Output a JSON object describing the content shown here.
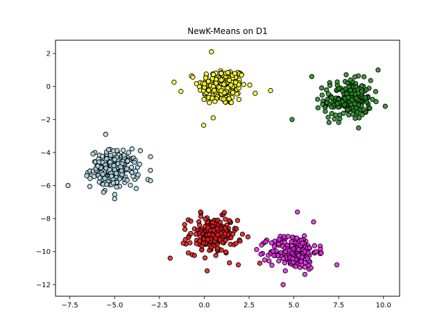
{
  "chart_data": {
    "type": "scatter",
    "title": "NewK-Means on D1",
    "xlabel": "",
    "ylabel": "",
    "xlim": [
      -8.3,
      10.9
    ],
    "ylim": [
      -12.7,
      2.8
    ],
    "xticks": [
      -7.5,
      -5.0,
      -2.5,
      0.0,
      2.5,
      5.0,
      7.5,
      10.0
    ],
    "xtick_labels": [
      "−7.5",
      "−5.0",
      "−2.5",
      "0.0",
      "2.5",
      "5.0",
      "7.5",
      "10.0"
    ],
    "yticks": [
      2,
      0,
      -2,
      -4,
      -6,
      -8,
      -10,
      -12
    ],
    "ytick_labels": [
      "2",
      "0",
      "−2",
      "−4",
      "−6",
      "−8",
      "−10",
      "−12"
    ],
    "grid": false,
    "legend": "none",
    "series": [
      {
        "color": "#ffff33",
        "center": [
          1.0,
          0.0
        ],
        "spread": [
          0.95,
          0.8
        ],
        "count": 200,
        "outliers": [
          [
            3.7,
            -0.25
          ],
          [
            0.4,
            2.1
          ],
          [
            -1.3,
            -0.3
          ],
          [
            0.5,
            -1.9
          ]
        ]
      },
      {
        "color": "#228b22",
        "center": [
          8.0,
          -0.8
        ],
        "spread": [
          0.95,
          0.85
        ],
        "count": 200,
        "outliers": [
          [
            4.9,
            -2.0
          ],
          [
            10.1,
            -1.2
          ],
          [
            9.7,
            1.0
          ],
          [
            6.0,
            0.6
          ]
        ]
      },
      {
        "color": "#add8e6",
        "center": [
          -5.0,
          -5.0
        ],
        "spread": [
          0.95,
          0.8
        ],
        "count": 200,
        "outliers": [
          [
            -7.6,
            -6.0
          ],
          [
            -5.5,
            -2.9
          ],
          [
            -3.0,
            -5.7
          ],
          [
            -5.0,
            -6.8
          ]
        ]
      },
      {
        "color": "#e41a1c",
        "center": [
          0.5,
          -9.0
        ],
        "spread": [
          0.95,
          0.8
        ],
        "count": 200,
        "outliers": [
          [
            -1.9,
            -10.4
          ],
          [
            3.1,
            -10.7
          ],
          [
            -0.2,
            -7.6
          ],
          [
            1.9,
            -10.8
          ]
        ]
      },
      {
        "color": "#ee22ee",
        "center": [
          5.0,
          -10.0
        ],
        "spread": [
          0.95,
          0.75
        ],
        "count": 200,
        "outliers": [
          [
            5.2,
            -7.6
          ],
          [
            7.4,
            -10.8
          ],
          [
            4.4,
            -12.0
          ],
          [
            3.2,
            -9.6
          ]
        ]
      }
    ]
  }
}
